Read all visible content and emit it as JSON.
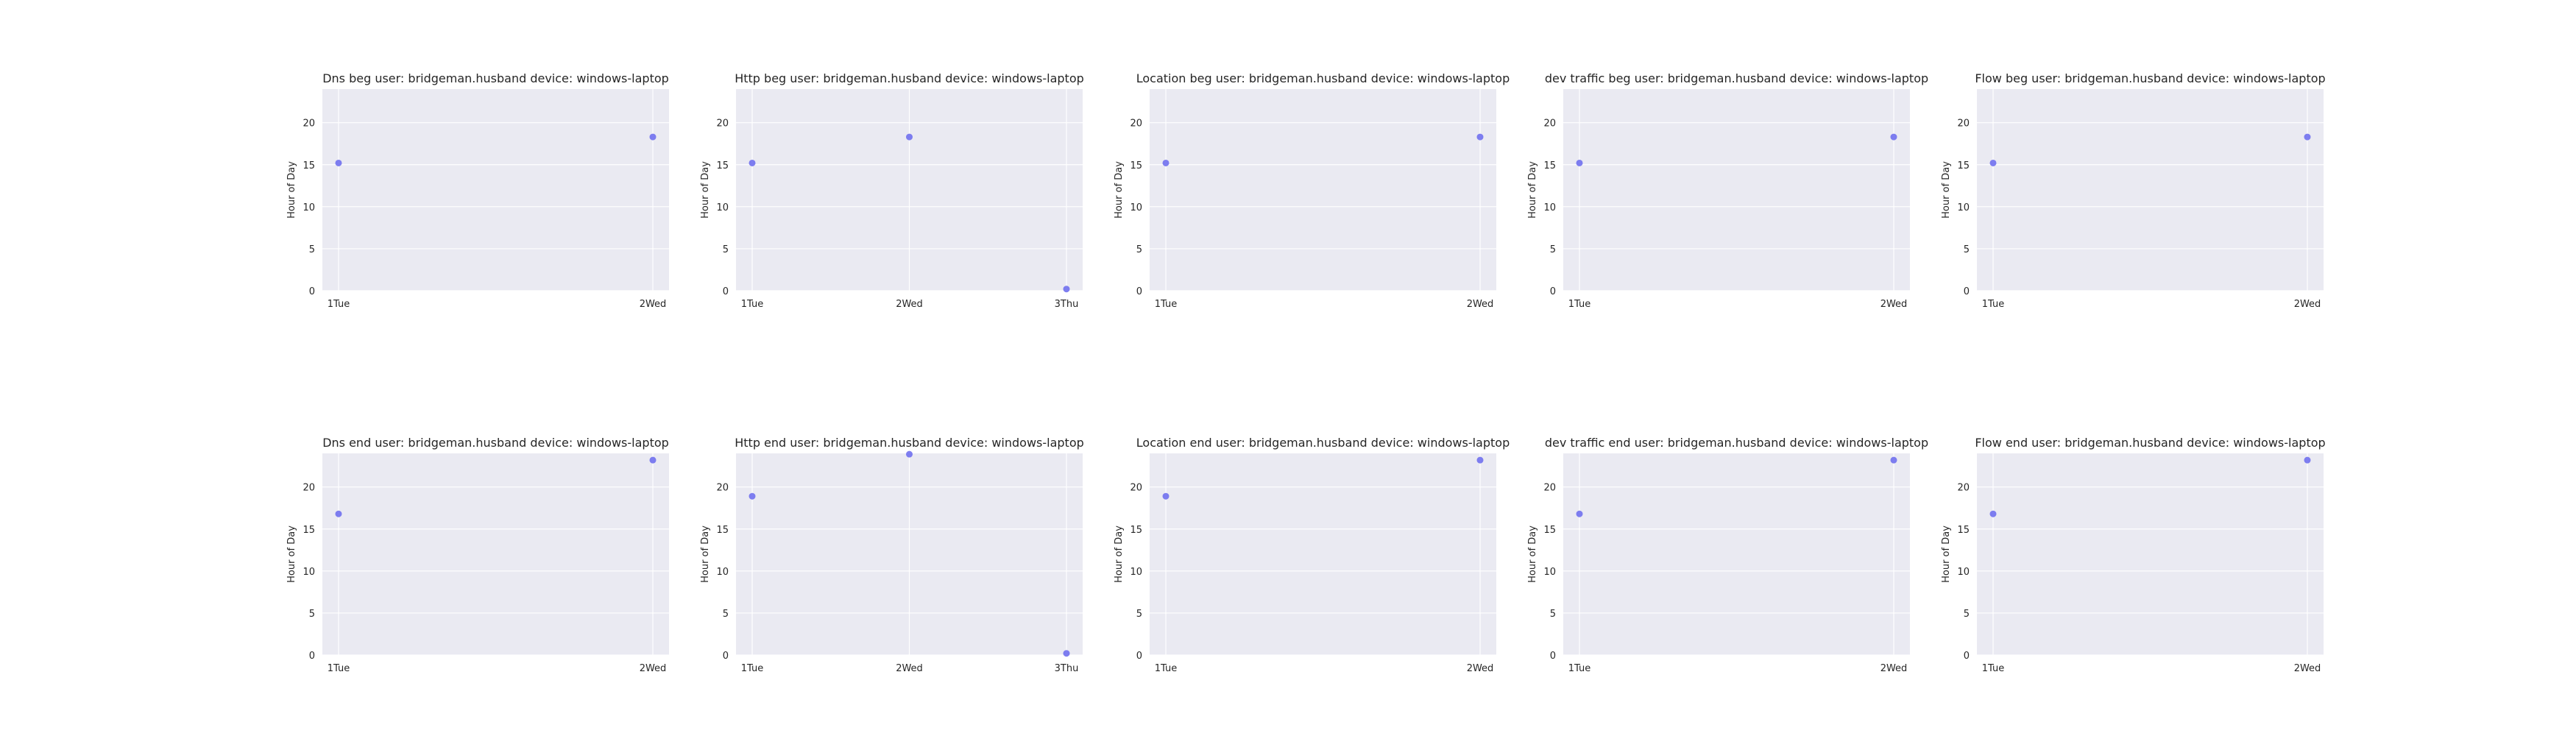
{
  "chart_data": [
    {
      "type": "scatter",
      "title": "Dns beg user: bridgeman.husband device: windows-laptop",
      "ylabel": "Hour of Day",
      "categories": [
        "1Tue",
        "2Wed"
      ],
      "points": [
        {
          "x": "1Tue",
          "y": 15.2
        },
        {
          "x": "2Wed",
          "y": 18.3
        }
      ],
      "ylim": [
        0,
        24
      ],
      "yticks": [
        0,
        5,
        10,
        15,
        20
      ],
      "grid": true
    },
    {
      "type": "scatter",
      "title": "Http beg user: bridgeman.husband device: windows-laptop",
      "ylabel": "Hour of Day",
      "categories": [
        "1Tue",
        "2Wed",
        "3Thu"
      ],
      "points": [
        {
          "x": "1Tue",
          "y": 15.2
        },
        {
          "x": "2Wed",
          "y": 18.3
        },
        {
          "x": "3Thu",
          "y": 0.2
        }
      ],
      "ylim": [
        0,
        24
      ],
      "yticks": [
        0,
        5,
        10,
        15,
        20
      ],
      "grid": true
    },
    {
      "type": "scatter",
      "title": "Location beg user: bridgeman.husband device: windows-laptop",
      "ylabel": "Hour of Day",
      "categories": [
        "1Tue",
        "2Wed"
      ],
      "points": [
        {
          "x": "1Tue",
          "y": 15.2
        },
        {
          "x": "2Wed",
          "y": 18.3
        }
      ],
      "ylim": [
        0,
        24
      ],
      "yticks": [
        0,
        5,
        10,
        15,
        20
      ],
      "grid": true
    },
    {
      "type": "scatter",
      "title": "dev traffic beg user: bridgeman.husband device: windows-laptop",
      "ylabel": "Hour of Day",
      "categories": [
        "1Tue",
        "2Wed"
      ],
      "points": [
        {
          "x": "1Tue",
          "y": 15.2
        },
        {
          "x": "2Wed",
          "y": 18.3
        }
      ],
      "ylim": [
        0,
        24
      ],
      "yticks": [
        0,
        5,
        10,
        15,
        20
      ],
      "grid": true
    },
    {
      "type": "scatter",
      "title": "Flow beg user: bridgeman.husband device: windows-laptop",
      "ylabel": "Hour of Day",
      "categories": [
        "1Tue",
        "2Wed"
      ],
      "points": [
        {
          "x": "1Tue",
          "y": 15.2
        },
        {
          "x": "2Wed",
          "y": 18.3
        }
      ],
      "ylim": [
        0,
        24
      ],
      "yticks": [
        0,
        5,
        10,
        15,
        20
      ],
      "grid": true
    },
    {
      "type": "scatter",
      "title": "Dns end user: bridgeman.husband device: windows-laptop",
      "ylabel": "Hour of Day",
      "categories": [
        "1Tue",
        "2Wed"
      ],
      "points": [
        {
          "x": "1Tue",
          "y": 16.8
        },
        {
          "x": "2Wed",
          "y": 23.2
        }
      ],
      "ylim": [
        0,
        24
      ],
      "yticks": [
        0,
        5,
        10,
        15,
        20
      ],
      "grid": true
    },
    {
      "type": "scatter",
      "title": "Http end user: bridgeman.husband device: windows-laptop",
      "ylabel": "Hour of Day",
      "categories": [
        "1Tue",
        "2Wed",
        "3Thu"
      ],
      "points": [
        {
          "x": "1Tue",
          "y": 18.9
        },
        {
          "x": "2Wed",
          "y": 23.9
        },
        {
          "x": "3Thu",
          "y": 0.2
        }
      ],
      "ylim": [
        0,
        24
      ],
      "yticks": [
        0,
        5,
        10,
        15,
        20
      ],
      "grid": true
    },
    {
      "type": "scatter",
      "title": "Location end user: bridgeman.husband device: windows-laptop",
      "ylabel": "Hour of Day",
      "categories": [
        "1Tue",
        "2Wed"
      ],
      "points": [
        {
          "x": "1Tue",
          "y": 18.9
        },
        {
          "x": "2Wed",
          "y": 23.2
        }
      ],
      "ylim": [
        0,
        24
      ],
      "yticks": [
        0,
        5,
        10,
        15,
        20
      ],
      "grid": true
    },
    {
      "type": "scatter",
      "title": "dev traffic end user: bridgeman.husband device: windows-laptop",
      "ylabel": "Hour of Day",
      "categories": [
        "1Tue",
        "2Wed"
      ],
      "points": [
        {
          "x": "1Tue",
          "y": 16.8
        },
        {
          "x": "2Wed",
          "y": 23.2
        }
      ],
      "ylim": [
        0,
        24
      ],
      "yticks": [
        0,
        5,
        10,
        15,
        20
      ],
      "grid": true
    },
    {
      "type": "scatter",
      "title": "Flow end user: bridgeman.husband device: windows-laptop",
      "ylabel": "Hour of Day",
      "categories": [
        "1Tue",
        "2Wed"
      ],
      "points": [
        {
          "x": "1Tue",
          "y": 16.8
        },
        {
          "x": "2Wed",
          "y": 23.2
        }
      ],
      "ylim": [
        0,
        24
      ],
      "yticks": [
        0,
        5,
        10,
        15,
        20
      ],
      "grid": true
    }
  ],
  "colors": {
    "plot_background": "#eaeaf2",
    "grid": "#ffffff",
    "marker": "#7070ee",
    "text": "#262626"
  }
}
